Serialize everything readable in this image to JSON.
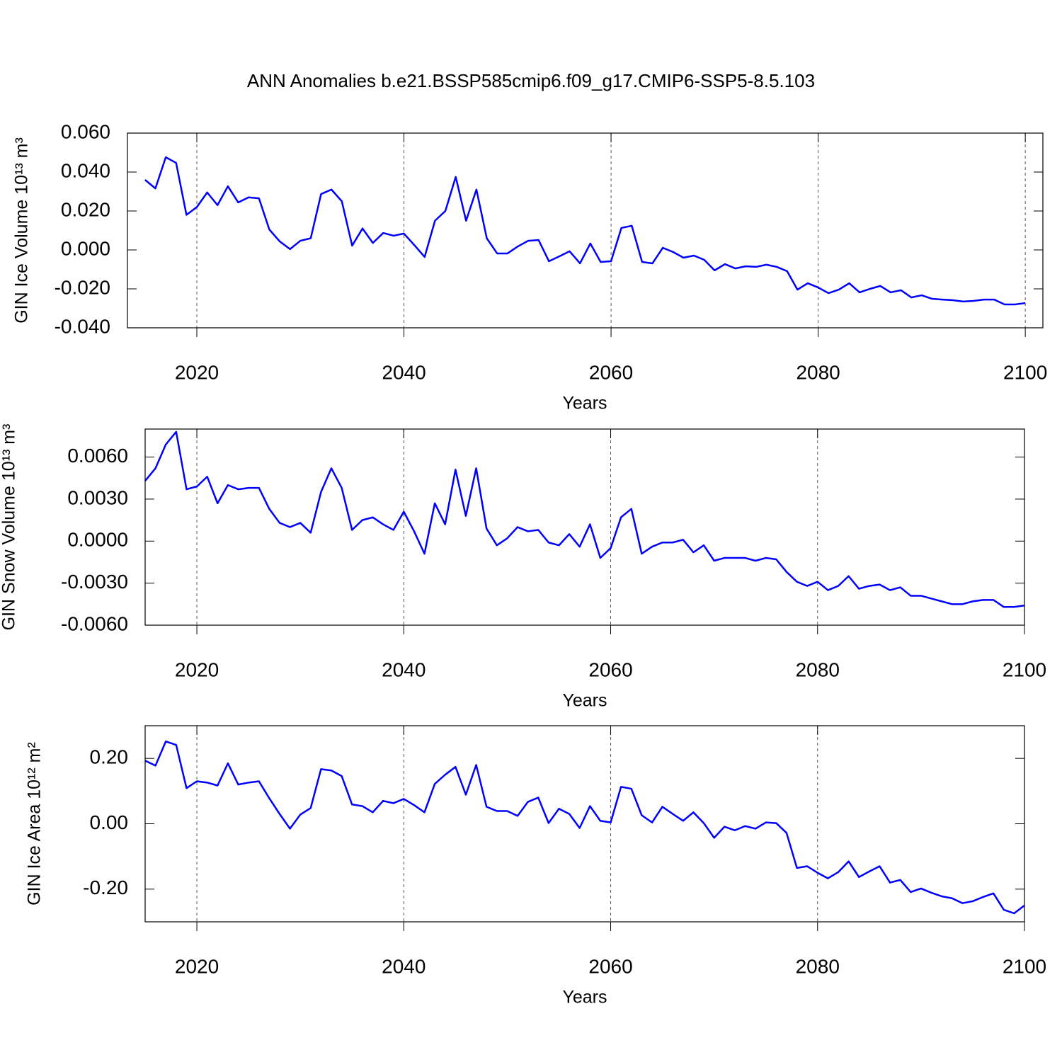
{
  "title": "ANN Anomalies b.e21.BSSP585cmip6.f09_g17.CMIP6-SSP5-8.5.103",
  "chart_data": [
    {
      "type": "line",
      "ylabel": "GIN Ice Volume 10¹³ m³",
      "xlabel": "Years",
      "color": "#0000ff",
      "xgrid": true,
      "xlim": [
        2013.3,
        2101.7
      ],
      "xticks": [
        2020,
        2040,
        2060,
        2080,
        2100
      ],
      "ylim": [
        -0.04,
        0.06
      ],
      "yticks": [
        {
          "value": 0.06,
          "label": "0.060"
        },
        {
          "value": 0.04,
          "label": "0.040"
        },
        {
          "value": 0.02,
          "label": "0.020"
        },
        {
          "value": 0,
          "label": "0.000"
        },
        {
          "value": -0.02,
          "label": "-0.020"
        },
        {
          "value": -0.04,
          "label": "-0.040"
        }
      ],
      "x": [
        2015,
        2016,
        2017,
        2018,
        2019,
        2020,
        2021,
        2022,
        2023,
        2024,
        2025,
        2026,
        2027,
        2028,
        2029,
        2030,
        2031,
        2032,
        2033,
        2034,
        2035,
        2036,
        2037,
        2038,
        2039,
        2040,
        2041,
        2042,
        2043,
        2044,
        2045,
        2046,
        2047,
        2048,
        2049,
        2050,
        2051,
        2052,
        2053,
        2054,
        2055,
        2056,
        2057,
        2058,
        2059,
        2060,
        2061,
        2062,
        2063,
        2064,
        2065,
        2066,
        2067,
        2068,
        2069,
        2070,
        2071,
        2072,
        2073,
        2074,
        2075,
        2076,
        2077,
        2078,
        2079,
        2080,
        2081,
        2082,
        2083,
        2084,
        2085,
        2086,
        2087,
        2088,
        2089,
        2090,
        2091,
        2092,
        2093,
        2094,
        2095,
        2096,
        2097,
        2098,
        2099,
        2100
      ],
      "values": [
        0.036,
        0.0316,
        0.0476,
        0.0447,
        0.018,
        0.022,
        0.0295,
        0.023,
        0.0327,
        0.0244,
        0.027,
        0.0265,
        0.0105,
        0.0044,
        0.0004,
        0.0047,
        0.006,
        0.0287,
        0.031,
        0.025,
        0.0022,
        0.011,
        0.0036,
        0.0087,
        0.0073,
        0.0084,
        0.0025,
        -0.0036,
        0.015,
        0.02,
        0.0375,
        0.015,
        0.031,
        0.006,
        -0.0018,
        -0.0018,
        0.0018,
        0.0047,
        0.0051,
        -0.0058,
        -0.0033,
        -0.0007,
        -0.0069,
        0.0033,
        -0.0062,
        -0.0058,
        0.0113,
        0.0124,
        -0.0062,
        -0.0069,
        0.0011,
        -0.0011,
        -0.004,
        -0.0029,
        -0.0051,
        -0.0105,
        -0.0073,
        -0.0095,
        -0.0084,
        -0.0087,
        -0.0076,
        -0.0087,
        -0.0109,
        -0.0204,
        -0.0171,
        -0.0193,
        -0.0222,
        -0.0204,
        -0.0171,
        -0.0218,
        -0.02,
        -0.0185,
        -0.0218,
        -0.0207,
        -0.0244,
        -0.0233,
        -0.0251,
        -0.0255,
        -0.0258,
        -0.0265,
        -0.0262,
        -0.0255,
        -0.0255,
        -0.028,
        -0.028,
        -0.0273
      ]
    },
    {
      "type": "line",
      "ylabel": "GIN Snow Volume 10¹³ m³",
      "xlabel": "Years",
      "color": "#0000ff",
      "xgrid": true,
      "xlim": [
        2015,
        2100
      ],
      "xticks": [
        2020,
        2040,
        2060,
        2080,
        2100
      ],
      "ylim": [
        -0.006,
        0.008
      ],
      "yticks": [
        {
          "value": 0.006,
          "label": "0.0060"
        },
        {
          "value": 0.003,
          "label": "0.0030"
        },
        {
          "value": 0,
          "label": "0.0000"
        },
        {
          "value": -0.003,
          "label": "-0.0030"
        },
        {
          "value": -0.006,
          "label": "-0.0060"
        }
      ],
      "x": [
        2015,
        2016,
        2017,
        2018,
        2019,
        2020,
        2021,
        2022,
        2023,
        2024,
        2025,
        2026,
        2027,
        2028,
        2029,
        2030,
        2031,
        2032,
        2033,
        2034,
        2035,
        2036,
        2037,
        2038,
        2039,
        2040,
        2041,
        2042,
        2043,
        2044,
        2045,
        2046,
        2047,
        2048,
        2049,
        2050,
        2051,
        2052,
        2053,
        2054,
        2055,
        2056,
        2057,
        2058,
        2059,
        2060,
        2061,
        2062,
        2063,
        2064,
        2065,
        2066,
        2067,
        2068,
        2069,
        2070,
        2071,
        2072,
        2073,
        2074,
        2075,
        2076,
        2077,
        2078,
        2079,
        2080,
        2081,
        2082,
        2083,
        2084,
        2085,
        2086,
        2087,
        2088,
        2089,
        2090,
        2091,
        2092,
        2093,
        2094,
        2095,
        2096,
        2097,
        2098,
        2099,
        2100
      ],
      "values": [
        0.0043,
        0.0052,
        0.0069,
        0.0078,
        0.0037,
        0.0039,
        0.0046,
        0.0027,
        0.004,
        0.0037,
        0.0038,
        0.0038,
        0.0023,
        0.0013,
        0.001,
        0.0013,
        0.0006,
        0.0035,
        0.0052,
        0.0038,
        0.0008,
        0.0015,
        0.0017,
        0.0012,
        0.0008,
        0.0021,
        0.0007,
        -0.0009,
        0.0027,
        0.0012,
        0.0051,
        0.0018,
        0.0052,
        0.0009,
        -0.0003,
        0.0002,
        0.001,
        0.0007,
        0.0008,
        -0.0001,
        -0.0003,
        0.0005,
        -0.0004,
        0.0012,
        -0.0012,
        -0.0005,
        0.0017,
        0.0023,
        -0.0009,
        -0.0004,
        -0.0001,
        -0.0001,
        0.0001,
        -0.0008,
        -0.0003,
        -0.0014,
        -0.0012,
        -0.0012,
        -0.0012,
        -0.0014,
        -0.0012,
        -0.0013,
        -0.0022,
        -0.0029,
        -0.0032,
        -0.0029,
        -0.0035,
        -0.0032,
        -0.0025,
        -0.0034,
        -0.0032,
        -0.0031,
        -0.0035,
        -0.0033,
        -0.0039,
        -0.0039,
        -0.0041,
        -0.0043,
        -0.0045,
        -0.0045,
        -0.0043,
        -0.0042,
        -0.0042,
        -0.0047,
        -0.0047,
        -0.0046
      ]
    },
    {
      "type": "line",
      "ylabel": "GIN Ice Area 10¹² m²",
      "xlabel": "Years",
      "color": "#0000ff",
      "xgrid": true,
      "xlim": [
        2015,
        2100
      ],
      "xticks": [
        2020,
        2040,
        2060,
        2080,
        2100
      ],
      "ylim": [
        -0.3,
        0.3
      ],
      "yticks": [
        {
          "value": 0.2,
          "label": "0.20"
        },
        {
          "value": 0,
          "label": "0.00"
        },
        {
          "value": -0.2,
          "label": "-0.20"
        }
      ],
      "x": [
        2015,
        2016,
        2017,
        2018,
        2019,
        2020,
        2021,
        2022,
        2023,
        2024,
        2025,
        2026,
        2027,
        2028,
        2029,
        2030,
        2031,
        2032,
        2033,
        2034,
        2035,
        2036,
        2037,
        2038,
        2039,
        2040,
        2041,
        2042,
        2043,
        2044,
        2045,
        2046,
        2047,
        2048,
        2049,
        2050,
        2051,
        2052,
        2053,
        2054,
        2055,
        2056,
        2057,
        2058,
        2059,
        2060,
        2061,
        2062,
        2063,
        2064,
        2065,
        2066,
        2067,
        2068,
        2069,
        2070,
        2071,
        2072,
        2073,
        2074,
        2075,
        2076,
        2077,
        2078,
        2079,
        2080,
        2081,
        2082,
        2083,
        2084,
        2085,
        2086,
        2087,
        2088,
        2089,
        2090,
        2091,
        2092,
        2093,
        2094,
        2095,
        2096,
        2097,
        2098,
        2099,
        2100
      ],
      "values": [
        0.193,
        0.178,
        0.252,
        0.241,
        0.109,
        0.13,
        0.126,
        0.117,
        0.185,
        0.12,
        0.126,
        0.13,
        0.078,
        0.03,
        -0.015,
        0.028,
        0.048,
        0.167,
        0.163,
        0.146,
        0.059,
        0.054,
        0.035,
        0.07,
        0.063,
        0.076,
        0.057,
        0.035,
        0.122,
        0.15,
        0.174,
        0.089,
        0.18,
        0.052,
        0.039,
        0.039,
        0.024,
        0.067,
        0.08,
        0.002,
        0.046,
        0.03,
        -0.013,
        0.054,
        0.009,
        0.004,
        0.113,
        0.107,
        0.026,
        0.004,
        0.052,
        0.03,
        0.009,
        0.035,
        0.002,
        -0.043,
        -0.009,
        -0.02,
        -0.007,
        -0.015,
        0.004,
        0.002,
        -0.028,
        -0.135,
        -0.13,
        -0.15,
        -0.167,
        -0.148,
        -0.115,
        -0.163,
        -0.146,
        -0.13,
        -0.18,
        -0.172,
        -0.209,
        -0.198,
        -0.211,
        -0.222,
        -0.228,
        -0.243,
        -0.237,
        -0.224,
        -0.213,
        -0.263,
        -0.274,
        -0.25
      ]
    }
  ]
}
